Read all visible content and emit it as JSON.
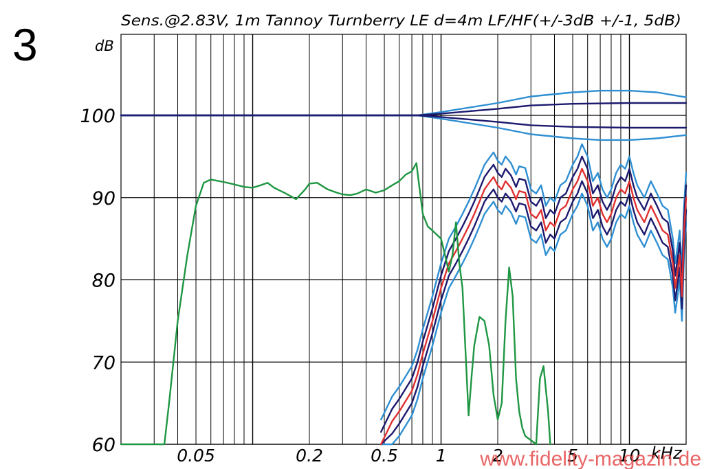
{
  "figure_number": "3",
  "watermark": "www.fidelity-magazin.de",
  "chart_data": {
    "type": "line",
    "title": "Sens.@2.83V, 1m Tannoy Turnberry LE d=4m LF/HF(+/-3dB +/-1, 5dB)",
    "ylabel": "dB",
    "xlabel": "kHz",
    "x_scale": "log",
    "xlim": [
      0.02,
      20
    ],
    "ylim": [
      60,
      110
    ],
    "grid": true,
    "y_ticks": [
      60,
      70,
      80,
      90,
      100
    ],
    "y_tick_labels": [
      "60",
      "70",
      "80",
      "90",
      "100"
    ],
    "x_tick_values": [
      0.05,
      0.2,
      0.5,
      1,
      2,
      5,
      10
    ],
    "x_tick_labels": [
      "0.05",
      "0.2",
      "0.5",
      "1",
      "2",
      "5",
      "10"
    ],
    "colors": {
      "lf": "#1e9642",
      "hf_center": "#e03030",
      "hf_1_5dB": "#1c1a6e",
      "hf_3dB": "#2f8fd2",
      "reference": "#2f8fd2",
      "grid": "#000000"
    },
    "series": [
      {
        "id": "lf",
        "x": [
          0.02,
          0.034,
          0.036,
          0.04,
          0.045,
          0.05,
          0.055,
          0.06,
          0.07,
          0.08,
          0.09,
          0.1,
          0.11,
          0.12,
          0.13,
          0.15,
          0.17,
          0.19,
          0.2,
          0.22,
          0.25,
          0.28,
          0.3,
          0.33,
          0.36,
          0.4,
          0.45,
          0.5,
          0.55,
          0.6,
          0.65,
          0.7,
          0.74,
          0.76,
          0.8,
          0.85,
          0.9,
          1.0,
          1.05,
          1.1,
          1.15,
          1.2,
          1.25,
          1.3,
          1.4,
          1.45,
          1.5,
          1.6,
          1.7,
          1.8,
          1.9,
          2.0,
          2.1,
          2.2,
          2.3,
          2.4,
          2.5,
          2.6,
          2.7,
          2.8,
          3.0,
          3.2,
          3.35,
          3.5,
          3.7,
          3.8
        ],
        "y": [
          60,
          60,
          65,
          75,
          83,
          89,
          91.8,
          92.2,
          91.9,
          91.6,
          91.3,
          91.2,
          91.5,
          91.8,
          91.2,
          90.5,
          89.8,
          91.0,
          91.7,
          91.8,
          91.0,
          90.6,
          90.4,
          90.3,
          90.5,
          91.0,
          90.6,
          90.9,
          91.5,
          92.0,
          92.8,
          93.2,
          94.2,
          92.0,
          88.0,
          86.5,
          86.0,
          85.0,
          83.0,
          81.0,
          83.0,
          87.0,
          82.0,
          79.0,
          63.5,
          68.0,
          72.0,
          75.5,
          75.0,
          72.0,
          66.0,
          63.0,
          65.0,
          75.0,
          81.5,
          78.0,
          68.0,
          64.0,
          62.0,
          61.0,
          60.5,
          60.0,
          68.0,
          69.5,
          64.0,
          60.0
        ]
      },
      {
        "id": "hf_center",
        "x": [
          0.48,
          0.55,
          0.6,
          0.7,
          0.75,
          0.8,
          0.9,
          1.0,
          1.1,
          1.2,
          1.3,
          1.4,
          1.5,
          1.6,
          1.7,
          1.8,
          1.9,
          2.0,
          2.1,
          2.2,
          2.35,
          2.5,
          2.6,
          2.8,
          3.0,
          3.2,
          3.4,
          3.6,
          3.8,
          4.0,
          4.3,
          4.6,
          5.0,
          5.3,
          5.6,
          6.0,
          6.4,
          6.8,
          7.2,
          7.6,
          8.0,
          8.5,
          9.0,
          9.5,
          10.0,
          10.5,
          11.0,
          12.0,
          13.0,
          14.0,
          15.0,
          16.0,
          17.0,
          17.5,
          18.0,
          18.5,
          19.0,
          19.5,
          20.0
        ],
        "y": [
          60.0,
          62.8,
          64.0,
          66.5,
          68.5,
          71.0,
          75.0,
          79.0,
          82.0,
          83.5,
          85.0,
          86.5,
          88.0,
          89.5,
          91.0,
          91.8,
          92.5,
          91.5,
          91.0,
          92.0,
          91.2,
          89.8,
          90.8,
          90.6,
          88.0,
          87.5,
          88.5,
          86.0,
          87.0,
          86.5,
          88.5,
          89.0,
          91.0,
          92.0,
          93.5,
          92.0,
          89.0,
          90.0,
          88.0,
          87.0,
          88.0,
          90.0,
          91.0,
          90.5,
          92.0,
          90.0,
          88.5,
          87.0,
          89.0,
          87.5,
          86.0,
          85.5,
          82.0,
          79.0,
          81.0,
          83.0,
          78.0,
          86.0,
          90.0
        ]
      },
      {
        "id": "hf_plus_1_5dB",
        "offset_of": "hf_center",
        "offset": 1.5
      },
      {
        "id": "hf_minus_1_5dB",
        "offset_of": "hf_center",
        "offset": -1.5
      },
      {
        "id": "hf_plus_3dB",
        "offset_of": "hf_center",
        "offset": 3
      },
      {
        "id": "hf_minus_3dB",
        "offset_of": "hf_center",
        "offset": -3
      },
      {
        "id": "ref_plus_1_5dB",
        "x": [
          0.02,
          0.75,
          1.0,
          2.0,
          3.0,
          5.0,
          10.0,
          20.0
        ],
        "y": [
          100,
          100,
          100.2,
          100.8,
          101.2,
          101.4,
          101.5,
          101.5
        ]
      },
      {
        "id": "ref_minus_1_5dB",
        "x": [
          0.02,
          0.75,
          1.0,
          2.0,
          3.0,
          5.0,
          10.0,
          20.0
        ],
        "y": [
          100,
          100,
          99.8,
          99.2,
          98.8,
          98.6,
          98.5,
          98.5
        ]
      },
      {
        "id": "ref_plus_3dB",
        "x": [
          0.02,
          0.75,
          1.0,
          2.0,
          3.0,
          5.0,
          7.0,
          10.0,
          14.0,
          20.0
        ],
        "y": [
          100,
          100,
          100.4,
          101.5,
          102.3,
          102.8,
          103.0,
          103.0,
          102.8,
          102.2
        ]
      },
      {
        "id": "ref_minus_3dB",
        "x": [
          0.02,
          0.75,
          1.0,
          2.0,
          3.0,
          5.0,
          7.0,
          10.0,
          14.0,
          20.0
        ],
        "y": [
          100,
          100,
          99.6,
          98.5,
          97.7,
          97.2,
          97.0,
          97.0,
          97.2,
          97.6
        ]
      }
    ]
  }
}
